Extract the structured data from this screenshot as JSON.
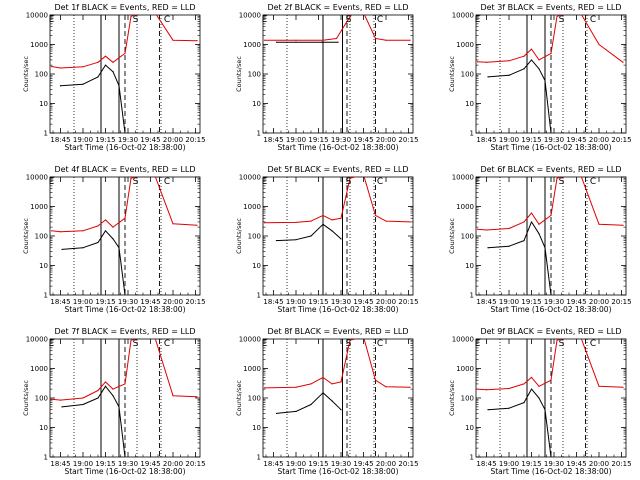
{
  "colors": {
    "events": "#000000",
    "lld": "#e00000",
    "axes": "#000000",
    "background": "#ffffff"
  },
  "chart_data": [
    {
      "type": "line",
      "title": "Det 1f BLACK = Events, RED = LLD",
      "xlabel": "Start Time (16-Oct-02 18:38:00)",
      "ylabel": "Counts/sec",
      "yscale": "log",
      "ylim": [
        1,
        10000
      ],
      "xlim": [
        "18:38",
        "20:18"
      ],
      "xticks": [
        "18:45",
        "19:00",
        "19:15",
        "19:30",
        "19:45",
        "20:00",
        "20:15"
      ],
      "yticks": [
        "1",
        "10",
        "100",
        "1000",
        "10000"
      ],
      "markers": {
        "E": "18:39",
        "S": "19:35",
        "C": "19:56"
      },
      "solid_vlines": [
        "19:12",
        "19:24"
      ],
      "dotted_vlines": [
        "18:54",
        "19:36",
        "19:52"
      ],
      "dashed_vlines": [
        "19:28",
        "19:51"
      ],
      "series": [
        {
          "name": "Events",
          "x": [
            "18:45",
            "19:00",
            "19:10",
            "19:15",
            "19:20",
            "19:24",
            "19:28"
          ],
          "y": [
            40,
            45,
            80,
            200,
            120,
            40,
            1
          ]
        },
        {
          "name": "LLD",
          "x": [
            "18:39",
            "18:45",
            "19:00",
            "19:10",
            "19:15",
            "19:20",
            "19:28",
            "19:32",
            "19:40",
            "19:48",
            "20:00",
            "20:16"
          ],
          "y": [
            180,
            160,
            175,
            250,
            400,
            250,
            500,
            9000,
            12000,
            12000,
            1400,
            1350
          ]
        }
      ]
    },
    {
      "type": "line",
      "title": "Det 2f BLACK = Events, RED = LLD",
      "xlabel": "Start Time (16-Oct-02 18:38:00)",
      "ylabel": "Counts/sec",
      "yscale": "log",
      "ylim": [
        1,
        10000
      ],
      "xlim": [
        "18:38",
        "20:18"
      ],
      "xticks": [
        "18:45",
        "19:00",
        "19:15",
        "19:30",
        "19:45",
        "20:00",
        "20:15"
      ],
      "yticks": [
        "1",
        "10",
        "100",
        "1000",
        "10000"
      ],
      "markers": {
        "E": "18:39",
        "S": "19:35",
        "C": "19:56"
      },
      "solid_vlines": [
        "19:18",
        "19:31"
      ],
      "dotted_vlines": [
        "18:54",
        "19:36",
        "19:52"
      ],
      "dashed_vlines": [
        "19:34",
        "19:53"
      ],
      "series": [
        {
          "name": "Events",
          "x": [
            "18:47",
            "19:00",
            "19:17",
            "19:28"
          ],
          "y": [
            1200,
            1200,
            1200,
            1200
          ]
        },
        {
          "name": "LLD",
          "x": [
            "18:39",
            "19:00",
            "19:18",
            "19:27",
            "19:33",
            "19:38",
            "19:45",
            "19:53",
            "20:00",
            "20:16"
          ],
          "y": [
            1400,
            1400,
            1400,
            1600,
            5000,
            12000,
            12000,
            1600,
            1400,
            1400
          ]
        }
      ]
    },
    {
      "type": "line",
      "title": "Det 3f BLACK = Events, RED = LLD",
      "xlabel": "Start Time (16-Oct-02 18:38:00)",
      "ylabel": "Counts/sec",
      "yscale": "log",
      "ylim": [
        1,
        10000
      ],
      "xlim": [
        "18:38",
        "20:18"
      ],
      "xticks": [
        "18:45",
        "19:00",
        "19:15",
        "19:30",
        "19:45",
        "20:00",
        "20:15"
      ],
      "yticks": [
        "1",
        "10",
        "100",
        "1000",
        "10000"
      ],
      "markers": {
        "E": "18:39",
        "S": "19:35",
        "C": "19:56"
      },
      "solid_vlines": [
        "19:12",
        "19:24"
      ],
      "dotted_vlines": [
        "18:54",
        "19:36",
        "19:52"
      ],
      "dashed_vlines": [
        "19:28",
        "19:51"
      ],
      "series": [
        {
          "name": "Events",
          "x": [
            "18:46",
            "19:00",
            "19:10",
            "19:15",
            "19:20",
            "19:24",
            "19:28"
          ],
          "y": [
            80,
            90,
            150,
            300,
            150,
            60,
            1
          ]
        },
        {
          "name": "LLD",
          "x": [
            "18:39",
            "18:45",
            "19:00",
            "19:10",
            "19:15",
            "19:20",
            "19:28",
            "19:32",
            "19:40",
            "19:48",
            "20:00",
            "20:16"
          ],
          "y": [
            260,
            250,
            280,
            400,
            700,
            300,
            500,
            9000,
            12000,
            11000,
            1000,
            250
          ]
        }
      ]
    },
    {
      "type": "line",
      "title": "Det 4f BLACK = Events, RED = LLD",
      "xlabel": "Start Time (16-Oct-02 18:38:00)",
      "ylabel": "Counts/sec",
      "yscale": "log",
      "ylim": [
        1,
        10000
      ],
      "xlim": [
        "18:38",
        "20:18"
      ],
      "xticks": [
        "18:45",
        "19:00",
        "19:15",
        "19:30",
        "19:45",
        "20:00",
        "20:15"
      ],
      "yticks": [
        "1",
        "10",
        "100",
        "1000",
        "10000"
      ],
      "markers": {
        "E": "18:39",
        "S": "19:35",
        "C": "19:56"
      },
      "solid_vlines": [
        "19:12",
        "19:24"
      ],
      "dotted_vlines": [
        "18:54",
        "19:36",
        "19:52"
      ],
      "dashed_vlines": [
        "19:28",
        "19:51"
      ],
      "series": [
        {
          "name": "Events",
          "x": [
            "18:46",
            "19:00",
            "19:10",
            "19:15",
            "19:20",
            "19:24",
            "19:28"
          ],
          "y": [
            35,
            40,
            60,
            150,
            80,
            40,
            1
          ]
        },
        {
          "name": "LLD",
          "x": [
            "18:39",
            "18:45",
            "19:00",
            "19:10",
            "19:15",
            "19:20",
            "19:28",
            "19:32",
            "19:40",
            "19:48",
            "20:00",
            "20:16"
          ],
          "y": [
            150,
            140,
            150,
            220,
            350,
            200,
            400,
            9000,
            12000,
            11000,
            260,
            230
          ]
        }
      ]
    },
    {
      "type": "line",
      "title": "Det 5f BLACK = Events, RED = LLD",
      "xlabel": "Start Time (16-Oct-02 18:38:00)",
      "ylabel": "Counts/sec",
      "yscale": "log",
      "ylim": [
        1,
        10000
      ],
      "xlim": [
        "18:38",
        "20:18"
      ],
      "xticks": [
        "18:45",
        "19:00",
        "19:15",
        "19:30",
        "19:45",
        "20:00",
        "20:15"
      ],
      "yticks": [
        "1",
        "10",
        "100",
        "1000",
        "10000"
      ],
      "markers": {
        "E": "18:39",
        "S": "19:35",
        "C": "19:56"
      },
      "solid_vlines": [
        "19:18",
        "19:31"
      ],
      "dotted_vlines": [
        "18:54",
        "19:36",
        "19:52"
      ],
      "dashed_vlines": [
        "19:34",
        "19:53"
      ],
      "series": [
        {
          "name": "Events",
          "x": [
            "18:47",
            "19:00",
            "19:10",
            "19:18",
            "19:24",
            "19:30"
          ],
          "y": [
            70,
            75,
            100,
            250,
            150,
            80
          ]
        },
        {
          "name": "LLD",
          "x": [
            "18:39",
            "19:00",
            "19:10",
            "19:18",
            "19:24",
            "19:30",
            "19:36",
            "19:45",
            "19:53",
            "20:00",
            "20:16"
          ],
          "y": [
            280,
            290,
            320,
            500,
            350,
            400,
            9000,
            12000,
            500,
            320,
            300
          ]
        }
      ]
    },
    {
      "type": "line",
      "title": "Det 6f BLACK = Events, RED = LLD",
      "xlabel": "Start Time (16-Oct-02 18:38:00)",
      "ylabel": "Counts/sec",
      "yscale": "log",
      "ylim": [
        1,
        10000
      ],
      "xlim": [
        "18:38",
        "20:18"
      ],
      "xticks": [
        "18:45",
        "19:00",
        "19:15",
        "19:30",
        "19:45",
        "20:00",
        "20:15"
      ],
      "yticks": [
        "1",
        "10",
        "100",
        "1000",
        "10000"
      ],
      "markers": {
        "E": "18:39",
        "S": "19:35",
        "C": "19:56"
      },
      "solid_vlines": [
        "19:12",
        "19:24"
      ],
      "dotted_vlines": [
        "18:54",
        "19:36",
        "19:52"
      ],
      "dashed_vlines": [
        "19:28",
        "19:51"
      ],
      "series": [
        {
          "name": "Events",
          "x": [
            "18:46",
            "19:00",
            "19:10",
            "19:15",
            "19:20",
            "19:24",
            "19:28"
          ],
          "y": [
            40,
            45,
            70,
            300,
            120,
            40,
            1
          ]
        },
        {
          "name": "LLD",
          "x": [
            "18:39",
            "18:45",
            "19:00",
            "19:10",
            "19:15",
            "19:20",
            "19:28",
            "19:32",
            "19:40",
            "19:48",
            "20:00",
            "20:16"
          ],
          "y": [
            170,
            160,
            180,
            300,
            600,
            250,
            500,
            9000,
            12000,
            11000,
            250,
            230
          ]
        }
      ]
    },
    {
      "type": "line",
      "title": "Det 7f BLACK = Events, RED = LLD",
      "xlabel": "Start Time (16-Oct-02 18:38:00)",
      "ylabel": "Counts/sec",
      "yscale": "log",
      "ylim": [
        1,
        10000
      ],
      "xlim": [
        "18:38",
        "20:18"
      ],
      "xticks": [
        "18:45",
        "19:00",
        "19:15",
        "19:30",
        "19:45",
        "20:00",
        "20:15"
      ],
      "yticks": [
        "1",
        "10",
        "100",
        "1000",
        "10000"
      ],
      "markers": {
        "E": "18:39",
        "S": "19:35",
        "C": "19:56"
      },
      "solid_vlines": [
        "19:12",
        "19:24"
      ],
      "dotted_vlines": [
        "18:54",
        "19:36",
        "19:52"
      ],
      "dashed_vlines": [
        "19:28",
        "19:51"
      ],
      "series": [
        {
          "name": "Events",
          "x": [
            "18:46",
            "19:00",
            "19:10",
            "19:15",
            "19:20",
            "19:24",
            "19:28"
          ],
          "y": [
            50,
            60,
            100,
            250,
            120,
            50,
            1
          ]
        },
        {
          "name": "LLD",
          "x": [
            "18:39",
            "18:45",
            "19:00",
            "19:10",
            "19:15",
            "19:20",
            "19:28",
            "19:32",
            "19:40",
            "19:48",
            "20:00",
            "20:16"
          ],
          "y": [
            90,
            85,
            100,
            180,
            350,
            200,
            300,
            9000,
            12000,
            11000,
            120,
            110
          ]
        }
      ]
    },
    {
      "type": "line",
      "title": "Det 8f BLACK = Events, RED = LLD",
      "xlabel": "Start Time (16-Oct-02 18:38:00)",
      "ylabel": "Counts/sec",
      "yscale": "log",
      "ylim": [
        1,
        10000
      ],
      "xlim": [
        "18:38",
        "20:18"
      ],
      "xticks": [
        "18:45",
        "19:00",
        "19:15",
        "19:30",
        "19:45",
        "20:00",
        "20:15"
      ],
      "yticks": [
        "1",
        "10",
        "100",
        "1000",
        "10000"
      ],
      "markers": {
        "E": "18:39",
        "S": "19:35",
        "C": "19:56"
      },
      "solid_vlines": [
        "19:18",
        "19:31"
      ],
      "dotted_vlines": [
        "18:54",
        "19:36",
        "19:52"
      ],
      "dashed_vlines": [
        "19:34",
        "19:53"
      ],
      "series": [
        {
          "name": "Events",
          "x": [
            "18:47",
            "19:00",
            "19:10",
            "19:18",
            "19:24",
            "19:30"
          ],
          "y": [
            30,
            35,
            60,
            150,
            80,
            40
          ]
        },
        {
          "name": "LLD",
          "x": [
            "18:39",
            "19:00",
            "19:10",
            "19:18",
            "19:24",
            "19:30",
            "19:36",
            "19:45",
            "19:53",
            "20:00",
            "20:16"
          ],
          "y": [
            220,
            230,
            300,
            500,
            300,
            350,
            9000,
            12000,
            400,
            240,
            230
          ]
        }
      ]
    },
    {
      "type": "line",
      "title": "Det 9f BLACK = Events, RED = LLD",
      "xlabel": "Start Time (16-Oct-02 18:38:00)",
      "ylabel": "Counts/sec",
      "yscale": "log",
      "ylim": [
        1,
        10000
      ],
      "xlim": [
        "18:38",
        "20:18"
      ],
      "xticks": [
        "18:45",
        "19:00",
        "19:15",
        "19:30",
        "19:45",
        "20:00",
        "20:15"
      ],
      "yticks": [
        "1",
        "10",
        "100",
        "1000",
        "10000"
      ],
      "markers": {
        "E": "18:39",
        "S": "19:35",
        "C": "19:56"
      },
      "solid_vlines": [
        "19:12",
        "19:24"
      ],
      "dotted_vlines": [
        "18:54",
        "19:36",
        "19:52"
      ],
      "dashed_vlines": [
        "19:28",
        "19:51"
      ],
      "series": [
        {
          "name": "Events",
          "x": [
            "18:46",
            "19:00",
            "19:10",
            "19:15",
            "19:20",
            "19:24",
            "19:28"
          ],
          "y": [
            40,
            45,
            70,
            200,
            100,
            40,
            1
          ]
        },
        {
          "name": "LLD",
          "x": [
            "18:39",
            "18:45",
            "19:00",
            "19:10",
            "19:15",
            "19:20",
            "19:28",
            "19:32",
            "19:40",
            "19:48",
            "20:00",
            "20:16"
          ],
          "y": [
            200,
            190,
            210,
            300,
            500,
            250,
            400,
            9000,
            12000,
            11000,
            250,
            230
          ]
        }
      ]
    }
  ]
}
